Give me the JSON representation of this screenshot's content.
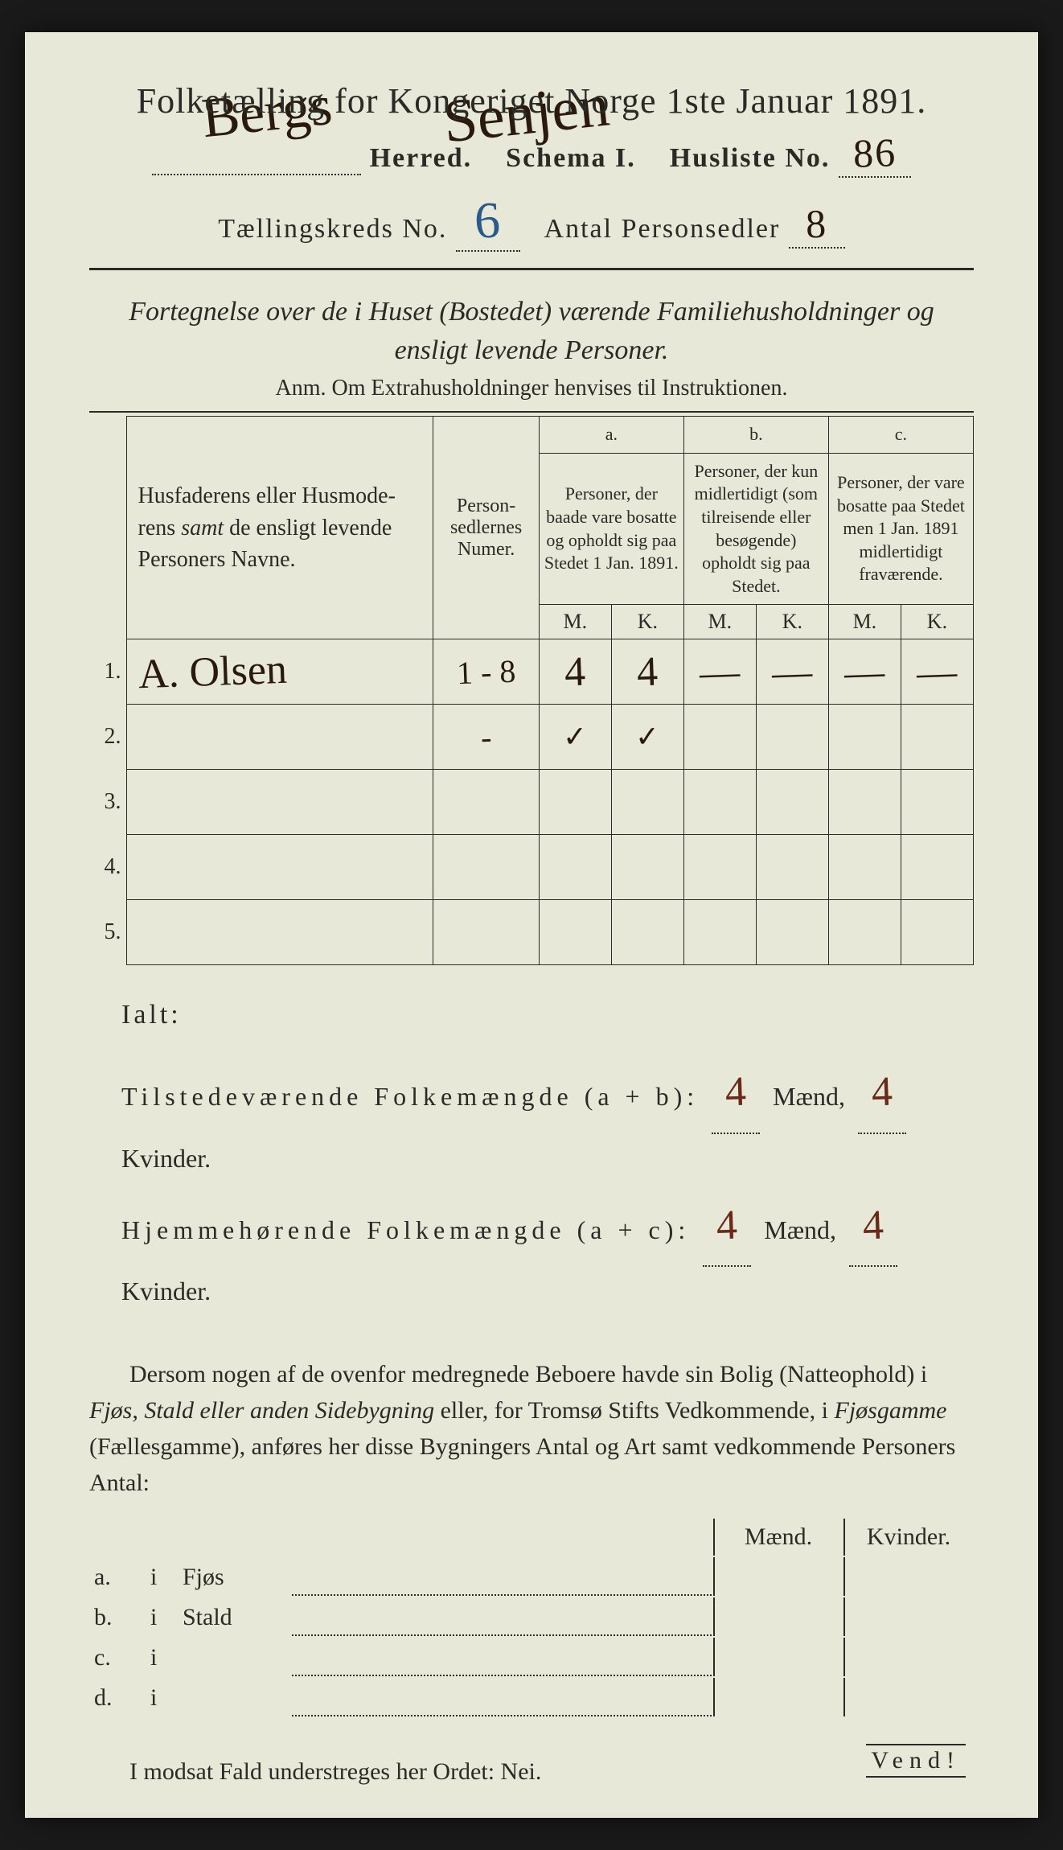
{
  "colors": {
    "paper": "#e8e8d8",
    "ink": "#2a2a26",
    "hand_ink": "#2a1a0e",
    "hand_blue": "#2a5a8a",
    "hand_brown": "#6a2a1a",
    "page_bg": "#1a1a1a"
  },
  "typography": {
    "title_fontsize": 44,
    "subtitle_fontsize": 34,
    "body_fontsize": 30,
    "table_fontsize": 24,
    "hand_fontsize": 50
  },
  "header": {
    "title_prefix": "Folketælling for Kongeriget Norge 1ste Januar 1891.",
    "line2_pre": "",
    "herred_label": "Herred.",
    "schema_label": "Schema I.",
    "husliste_label": "Husliste No.",
    "kreds_label": "Tællingskreds No.",
    "antal_label": "Antal Personsedler",
    "handwritten_region": "Bergs",
    "handwritten_region2": "Senjen",
    "husliste_no": "86",
    "kreds_no": "6",
    "antal_personsedler": "8"
  },
  "subtitle": {
    "line": "Fortegnelse over de i Huset (Bostedet) værende Familiehusholdninger og ensligt levende Personer.",
    "anm": "Anm.  Om Extrahusholdninger henvises til Instruktionen."
  },
  "table": {
    "col_names_header": "Husfaderens eller Husmoderens samt de ensligt levende Personers Navne.",
    "col_num_header": "Personsedlernes Numer.",
    "group_a_label": "a.",
    "group_a_text": "Personer, der baade vare bosatte og opholdt sig paa Stedet 1 Jan. 1891.",
    "group_b_label": "b.",
    "group_b_text": "Personer, der kun midlertidigt (som tilreisende eller besøgende) opholdt sig paa Stedet.",
    "group_c_label": "c.",
    "group_c_text": "Personer, der vare bosatte paa Stedet men 1 Jan. 1891 midlertidigt fraværende.",
    "m_label": "M.",
    "k_label": "K.",
    "rows": [
      {
        "n": "1.",
        "name": "A. Olsen",
        "num": "1 - 8",
        "a_m": "4",
        "a_k": "4",
        "b_m": "—",
        "b_k": "—",
        "c_m": "—",
        "c_k": "—"
      },
      {
        "n": "2.",
        "name": "",
        "num": "-",
        "a_m": "✓",
        "a_k": "✓",
        "b_m": "",
        "b_k": "",
        "c_m": "",
        "c_k": ""
      },
      {
        "n": "3.",
        "name": "",
        "num": "",
        "a_m": "",
        "a_k": "",
        "b_m": "",
        "b_k": "",
        "c_m": "",
        "c_k": ""
      },
      {
        "n": "4.",
        "name": "",
        "num": "",
        "a_m": "",
        "a_k": "",
        "b_m": "",
        "b_k": "",
        "c_m": "",
        "c_k": ""
      },
      {
        "n": "5.",
        "name": "",
        "num": "",
        "a_m": "",
        "a_k": "",
        "b_m": "",
        "b_k": "",
        "c_m": "",
        "c_k": ""
      }
    ]
  },
  "totals": {
    "ialt_label": "Ialt:",
    "line1_label": "Tilstedeværende Folkemængde (a + b):",
    "line2_label": "Hjemmehørende Folkemængde (a + c):",
    "maend_label": "Mænd,",
    "kvinder_label": "Kvinder.",
    "line1_m": "4",
    "line1_k": "4",
    "line2_m": "4",
    "line2_k": "4"
  },
  "paragraph": {
    "text_1": "Dersom nogen af de ovenfor medregnede Beboere havde sin Bolig (Natteophold) i ",
    "it_1": "Fjøs, Stald eller anden Sidebygning",
    "text_2": " eller, for Tromsø Stifts Vedkommende, i ",
    "it_2": "Fjøsgamme",
    "text_3": " (Fællesgamme), anføres her disse Bygningers Antal og Art samt vedkommende Personers Antal:"
  },
  "buildings": {
    "maend_label": "Mænd.",
    "kvinder_label": "Kvinder.",
    "rows": [
      {
        "letter": "a.",
        "i": "i",
        "name": "Fjøs"
      },
      {
        "letter": "b.",
        "i": "i",
        "name": "Stald"
      },
      {
        "letter": "c.",
        "i": "i",
        "name": ""
      },
      {
        "letter": "d.",
        "i": "i",
        "name": ""
      }
    ]
  },
  "footer": {
    "line": "I modsat Fald understreges her Ordet: Nei.",
    "vend": "Vend!"
  }
}
